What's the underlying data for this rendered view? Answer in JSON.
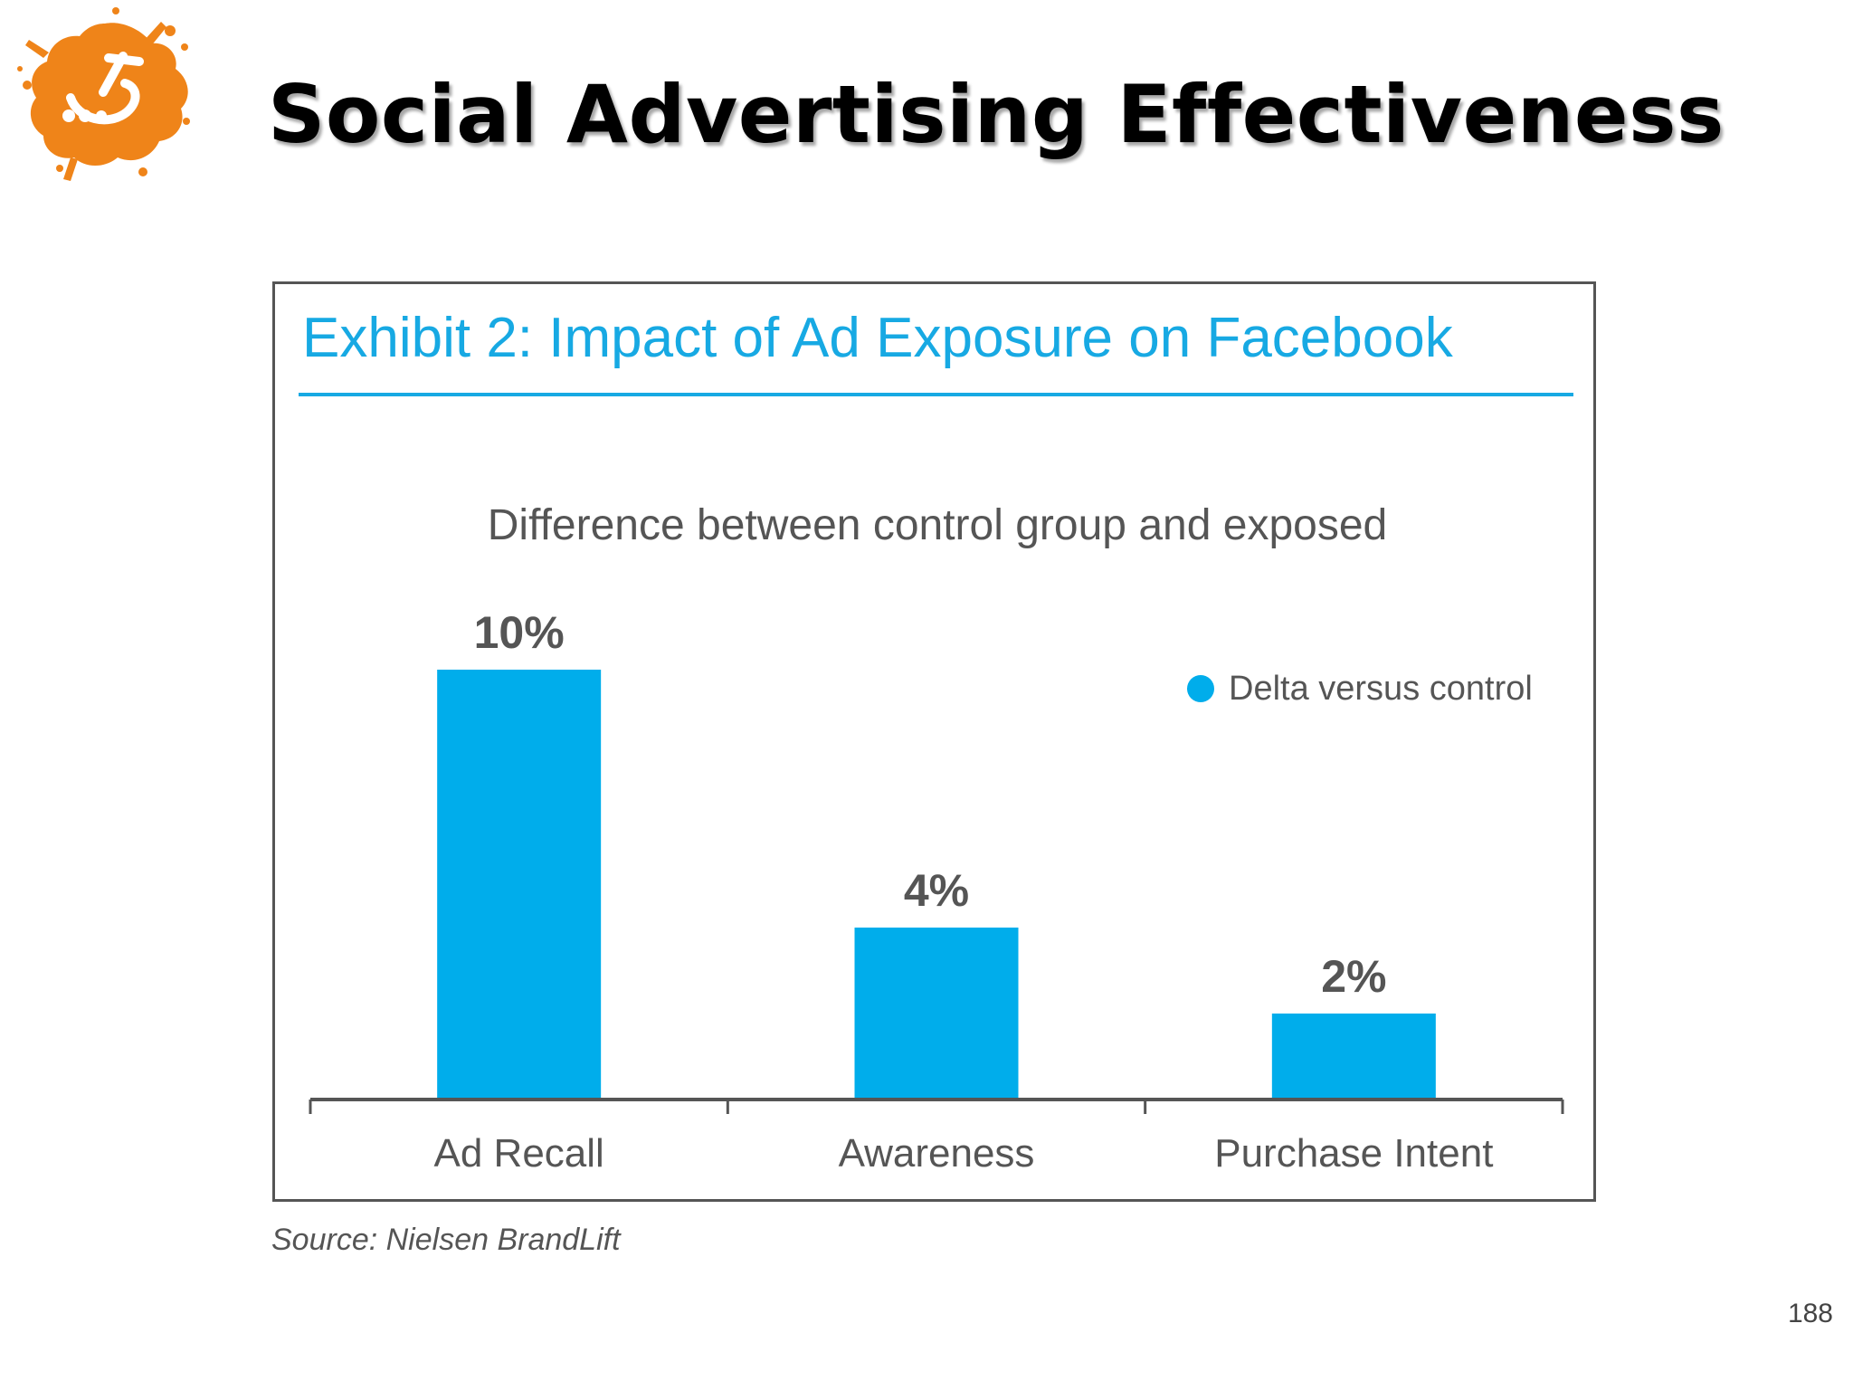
{
  "slide": {
    "title": "Social Advertising Effectiveness",
    "page_number": "188",
    "source": "Source: Nielsen BrandLift",
    "logo": "orange-splash-logo"
  },
  "colors": {
    "accent": "#17a9e3",
    "bar": "#00adeb",
    "logo": "#ef8419",
    "axis": "#555555",
    "text": "#555555"
  },
  "chart_data": {
    "type": "bar",
    "exhibit_title": "Exhibit 2: Impact of Ad Exposure on Facebook",
    "title": "Difference between control group and exposed",
    "categories": [
      "Ad Recall",
      "Awareness",
      "Purchase Intent"
    ],
    "series": [
      {
        "name": "Delta versus control",
        "values": [
          10,
          4,
          2
        ],
        "labels": [
          "10%",
          "4%",
          "2%"
        ]
      }
    ],
    "ylim": [
      0,
      10
    ],
    "xlabel": "",
    "ylabel": "",
    "grid": false,
    "legend_position": "top-right"
  }
}
